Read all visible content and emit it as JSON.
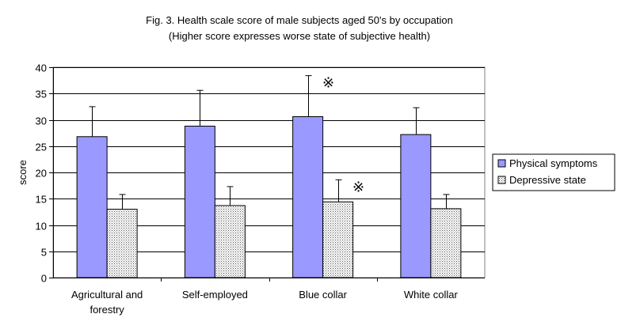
{
  "chart_data": {
    "type": "bar",
    "title": "Fig. 3. Health scale score of male subjects aged 50's by occupation",
    "subtitle": "(Higher score expresses worse state of subjective health)",
    "ylabel": "score",
    "xlabel": "",
    "ylim": [
      0,
      40
    ],
    "yticks": [
      0,
      5,
      10,
      15,
      20,
      25,
      30,
      35,
      40
    ],
    "grid": true,
    "legend_position": "right",
    "categories": [
      [
        "Agricultural and",
        "forestry"
      ],
      [
        "Self-employed"
      ],
      [
        "Blue collar"
      ],
      [
        "White collar"
      ]
    ],
    "series": [
      {
        "name": "Physical symptoms",
        "color": "#9999ff",
        "pattern": "solid",
        "values": [
          26.8,
          28.8,
          30.6,
          27.2
        ],
        "error": [
          5.7,
          6.8,
          7.8,
          5.1
        ],
        "markers": [
          "",
          "",
          "※",
          ""
        ]
      },
      {
        "name": "Depressive state",
        "color": "#ffffff",
        "pattern": "dotted",
        "values": [
          13.0,
          13.7,
          14.4,
          13.1
        ],
        "error": [
          2.8,
          3.6,
          4.2,
          2.7
        ],
        "markers": [
          "",
          "",
          "※",
          ""
        ]
      }
    ]
  }
}
